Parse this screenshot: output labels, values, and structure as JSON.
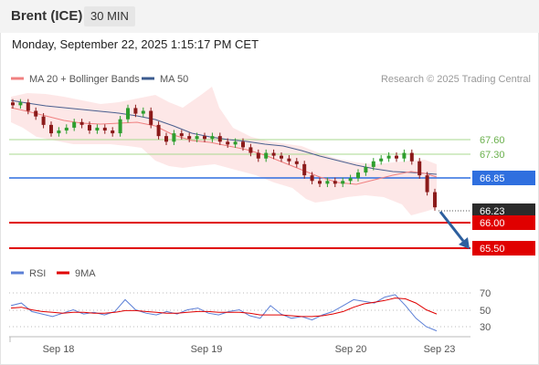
{
  "header": {
    "instrument": "Brent (ICE)",
    "timeframe": "30 MIN",
    "datetime": "Monday, September 22, 2025 1:15:17 PM CET"
  },
  "legend": {
    "ma20": {
      "label": "MA 20 + Bollinger Bands",
      "color": "#f08080"
    },
    "ma50": {
      "label": "MA 50",
      "color": "#3b5b8f"
    },
    "rsi": {
      "label": "RSI",
      "color": "#5b7fd6"
    },
    "ma9": {
      "label": "9MA",
      "color": "#e00000"
    }
  },
  "copyright": "Research © 2025 Trading Central",
  "levels": {
    "resistance2": {
      "value": "67.60",
      "color": "#a9d88f"
    },
    "resistance1": {
      "value": "67.30",
      "color": "#a9d88f"
    },
    "pivot": {
      "value": "66.85",
      "color": "#2f6fdf"
    },
    "last": {
      "value": "66.23",
      "color": "#333333"
    },
    "support1": {
      "value": "66.00",
      "color": "#e00000"
    },
    "support2": {
      "value": "65.50",
      "color": "#e00000"
    }
  },
  "rsi_ticks": [
    "70",
    "50",
    "30"
  ],
  "x_ticks": [
    "Sep 18",
    "Sep 19",
    "Sep 20",
    "Sep 23"
  ],
  "chart_data": {
    "type": "candlestick",
    "y_range_approx": [
      65.5,
      68.3
    ],
    "closes_approx": [
      68.05,
      68.1,
      67.95,
      67.85,
      67.7,
      67.55,
      67.6,
      67.65,
      67.75,
      67.7,
      67.6,
      67.65,
      67.6,
      67.55,
      67.8,
      68.0,
      67.9,
      67.95,
      67.7,
      67.5,
      67.4,
      67.55,
      67.5,
      67.45,
      67.5,
      67.45,
      67.5,
      67.4,
      67.35,
      67.4,
      67.3,
      67.2,
      67.1,
      67.2,
      67.15,
      67.1,
      67.05,
      67.0,
      66.8,
      66.7,
      66.65,
      66.7,
      66.65,
      66.7,
      66.75,
      66.85,
      66.95,
      67.05,
      67.1,
      67.15,
      67.1,
      67.2,
      67.05,
      66.8,
      66.5,
      66.23
    ],
    "ma20_approx": [
      67.95,
      67.9,
      67.8,
      67.75,
      67.7,
      67.7,
      67.68,
      67.65,
      67.6,
      67.55,
      67.5,
      67.45,
      67.42,
      67.4,
      67.35,
      67.3,
      67.25,
      67.2,
      67.12,
      67.05,
      67.0,
      66.97,
      66.95,
      66.97,
      67.0,
      67.05,
      66.97,
      66.95
    ],
    "ma50_approx": [
      68.15,
      68.05,
      67.95,
      67.85,
      67.8,
      67.75,
      67.7,
      67.65,
      67.6,
      67.57,
      67.53,
      67.5,
      67.45,
      67.4,
      67.35,
      67.3,
      67.25,
      67.2,
      67.15,
      67.1,
      67.05,
      67.0,
      66.97,
      66.95,
      66.95,
      66.95,
      66.93,
      66.92
    ],
    "rsi_approx": [
      55,
      58,
      48,
      45,
      42,
      46,
      50,
      45,
      47,
      44,
      48,
      62,
      50,
      46,
      44,
      48,
      45,
      50,
      52,
      46,
      44,
      48,
      50,
      43,
      40,
      55,
      45,
      40,
      42,
      38,
      44,
      48,
      55,
      62,
      60,
      58,
      65,
      68,
      55,
      40,
      30,
      25
    ],
    "rsi_ma_approx": [
      52,
      53,
      50,
      48,
      47,
      46,
      47,
      47,
      46,
      46,
      47,
      49,
      49,
      48,
      47,
      46,
      46,
      47,
      48,
      48,
      47,
      47,
      47,
      46,
      44,
      44,
      44,
      43,
      42,
      42,
      43,
      45,
      48,
      53,
      57,
      59,
      61,
      64,
      63,
      58,
      50,
      45
    ]
  }
}
